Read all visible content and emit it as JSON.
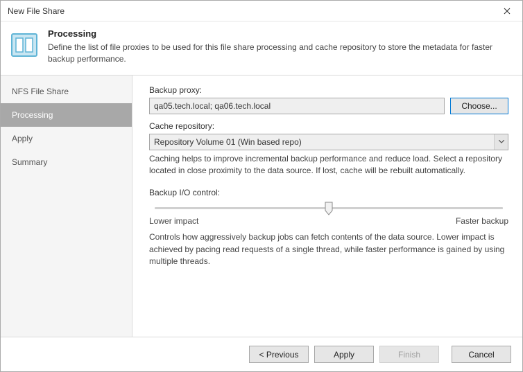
{
  "window": {
    "title": "New File Share"
  },
  "header": {
    "title": "Processing",
    "description": "Define the list of file proxies to be used for this file share processing and cache repository to store the metadata for faster backup performance.",
    "icon_colors": {
      "stroke": "#5fb4d6",
      "fill": "#c9e6f2",
      "panel": "#ffffff"
    }
  },
  "sidebar": {
    "items": [
      {
        "label": "NFS File Share",
        "active": false
      },
      {
        "label": "Processing",
        "active": true
      },
      {
        "label": "Apply",
        "active": false
      },
      {
        "label": "Summary",
        "active": false
      }
    ]
  },
  "content": {
    "backup_proxy": {
      "label": "Backup proxy:",
      "value": "qa05.tech.local; qa06.tech.local",
      "choose_label": "Choose..."
    },
    "cache_repo": {
      "label": "Cache repository:",
      "value": "Repository Volume 01 (Win based repo)",
      "help": "Caching helps to improve incremental backup performance and reduce load. Select a repository located in close proximity to the data source. If lost, cache will be rebuilt automatically."
    },
    "io_control": {
      "label": "Backup I/O control:",
      "slider_value_pct": 50,
      "left_label": "Lower impact",
      "right_label": "Faster backup",
      "help": "Controls how aggressively backup jobs can fetch contents of the data source. Lower impact is achieved by pacing read requests of a single thread, while faster performance is gained by using multiple threads."
    }
  },
  "footer": {
    "previous": "< Previous",
    "apply": "Apply",
    "finish": "Finish",
    "cancel": "Cancel",
    "finish_enabled": false
  },
  "colors": {
    "window_border": "#aaaaaa",
    "sidebar_bg": "#f5f5f5",
    "sidebar_active_bg": "#a8a8a8",
    "input_bg": "#efefef",
    "choose_border": "#0078d4"
  }
}
